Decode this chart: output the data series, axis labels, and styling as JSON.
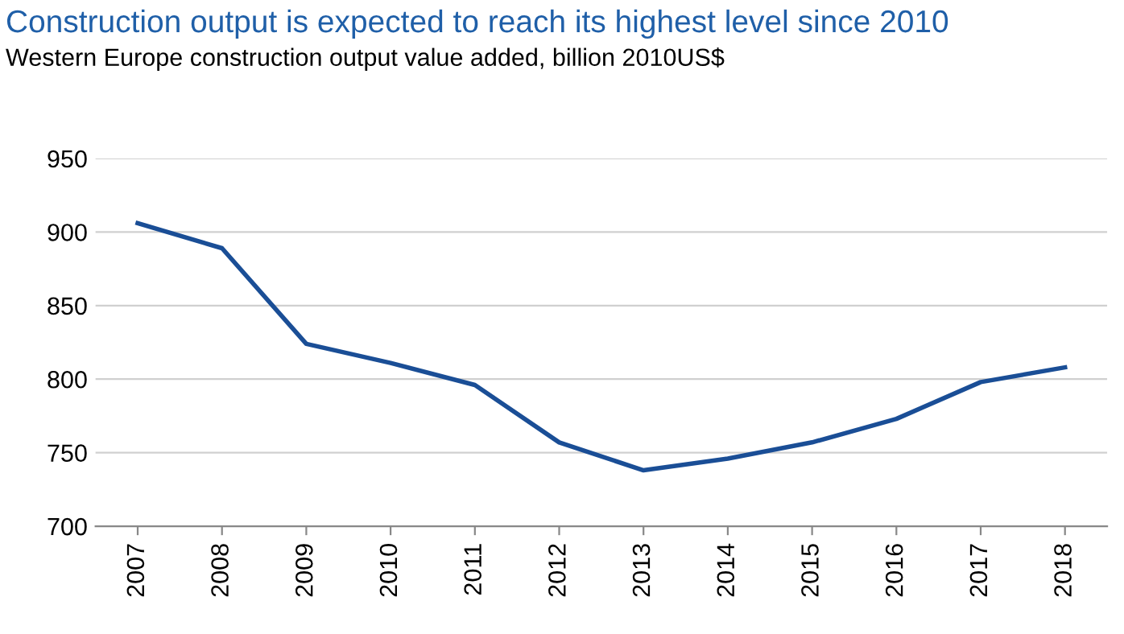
{
  "chart_data": {
    "type": "line",
    "title": "Construction output is expected to reach its highest level since 2010",
    "subtitle": "Western Europe construction output value added, billion 2010US$",
    "categories": [
      "2007",
      "2008",
      "2009",
      "2010",
      "2011",
      "2012",
      "2013",
      "2014",
      "2015",
      "2016",
      "2017",
      "2018"
    ],
    "series": [
      {
        "color": "#1a4e96",
        "values": [
          906,
          889,
          824,
          811,
          796,
          757,
          738,
          746,
          757,
          773,
          798,
          808
        ]
      }
    ],
    "ylim": [
      700,
      950
    ],
    "yticks": [
      700,
      750,
      800,
      850,
      900,
      950
    ],
    "grid": "y",
    "legend": false,
    "marker": "none",
    "line_style": "solid"
  }
}
